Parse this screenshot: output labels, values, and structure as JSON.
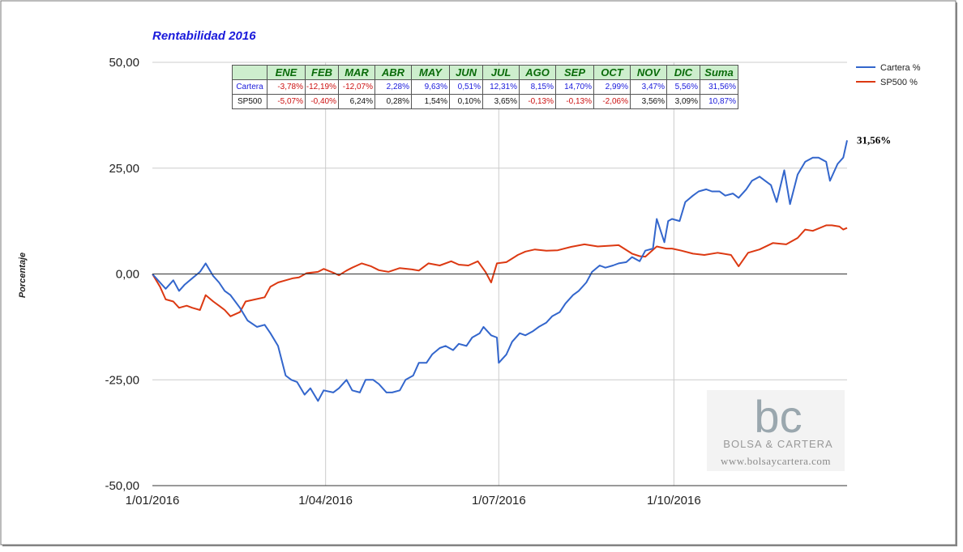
{
  "chart_data": {
    "type": "line",
    "title": "Rentabilidad 2016",
    "ylabel": "Porcentaje",
    "xlabel": "",
    "ylim": [
      -50,
      50
    ],
    "yticks": [
      "50,00",
      "25,00",
      "0,00",
      "-25,00",
      "-50,00"
    ],
    "xticks": [
      "1/01/2016",
      "1/04/2016",
      "1/07/2016",
      "1/10/2016"
    ],
    "grid": true,
    "legend_position": "top-right",
    "end_label": "31,56%",
    "series": [
      {
        "name": "Cartera %",
        "color": "#3366cc",
        "points": [
          [
            "2016-01-01",
            0
          ],
          [
            "2016-01-05",
            -2
          ],
          [
            "2016-01-08",
            -3.5
          ],
          [
            "2016-01-12",
            -1.5
          ],
          [
            "2016-01-15",
            -4
          ],
          [
            "2016-01-18",
            -2.5
          ],
          [
            "2016-01-22",
            -1
          ],
          [
            "2016-01-26",
            0.5
          ],
          [
            "2016-01-29",
            2.5
          ],
          [
            "2016-02-02",
            -0.5
          ],
          [
            "2016-02-05",
            -2
          ],
          [
            "2016-02-08",
            -4
          ],
          [
            "2016-02-11",
            -5
          ],
          [
            "2016-02-16",
            -8
          ],
          [
            "2016-02-20",
            -11
          ],
          [
            "2016-02-25",
            -12.5
          ],
          [
            "2016-02-29",
            -12
          ],
          [
            "2016-03-03",
            -14
          ],
          [
            "2016-03-07",
            -17
          ],
          [
            "2016-03-11",
            -24
          ],
          [
            "2016-03-14",
            -25
          ],
          [
            "2016-03-17",
            -25.5
          ],
          [
            "2016-03-21",
            -28.5
          ],
          [
            "2016-03-24",
            -27
          ],
          [
            "2016-03-28",
            -30
          ],
          [
            "2016-03-31",
            -27.5
          ],
          [
            "2016-04-05",
            -28
          ],
          [
            "2016-04-08",
            -27
          ],
          [
            "2016-04-12",
            -25
          ],
          [
            "2016-04-15",
            -27.5
          ],
          [
            "2016-04-19",
            -28
          ],
          [
            "2016-04-22",
            -25
          ],
          [
            "2016-04-26",
            -25
          ],
          [
            "2016-04-29",
            -26
          ],
          [
            "2016-05-03",
            -28
          ],
          [
            "2016-05-06",
            -28
          ],
          [
            "2016-05-10",
            -27.5
          ],
          [
            "2016-05-13",
            -25
          ],
          [
            "2016-05-17",
            -24
          ],
          [
            "2016-05-20",
            -21
          ],
          [
            "2016-05-24",
            -21
          ],
          [
            "2016-05-27",
            -19
          ],
          [
            "2016-05-31",
            -17.5
          ],
          [
            "2016-06-03",
            -17
          ],
          [
            "2016-06-07",
            -18
          ],
          [
            "2016-06-10",
            -16.5
          ],
          [
            "2016-06-14",
            -17
          ],
          [
            "2016-06-17",
            -15
          ],
          [
            "2016-06-21",
            -14
          ],
          [
            "2016-06-23",
            -12.5
          ],
          [
            "2016-06-27",
            -14.5
          ],
          [
            "2016-06-30",
            -15
          ],
          [
            "2016-07-01",
            -21
          ],
          [
            "2016-07-05",
            -19
          ],
          [
            "2016-07-08",
            -16
          ],
          [
            "2016-07-12",
            -14
          ],
          [
            "2016-07-15",
            -14.5
          ],
          [
            "2016-07-19",
            -13.5
          ],
          [
            "2016-07-22",
            -12.5
          ],
          [
            "2016-07-26",
            -11.5
          ],
          [
            "2016-07-29",
            -10
          ],
          [
            "2016-08-02",
            -9
          ],
          [
            "2016-08-05",
            -7
          ],
          [
            "2016-08-09",
            -5
          ],
          [
            "2016-08-12",
            -4
          ],
          [
            "2016-08-16",
            -2
          ],
          [
            "2016-08-19",
            0.5
          ],
          [
            "2016-08-23",
            2
          ],
          [
            "2016-08-26",
            1.5
          ],
          [
            "2016-08-30",
            2
          ],
          [
            "2016-09-02",
            2.5
          ],
          [
            "2016-09-06",
            2.8
          ],
          [
            "2016-09-09",
            4
          ],
          [
            "2016-09-13",
            3
          ],
          [
            "2016-09-16",
            5.5
          ],
          [
            "2016-09-20",
            6
          ],
          [
            "2016-09-22",
            13
          ],
          [
            "2016-09-26",
            7.5
          ],
          [
            "2016-09-28",
            12.5
          ],
          [
            "2016-09-30",
            13
          ],
          [
            "2016-10-04",
            12.5
          ],
          [
            "2016-10-07",
            17
          ],
          [
            "2016-10-11",
            18.5
          ],
          [
            "2016-10-14",
            19.5
          ],
          [
            "2016-10-18",
            20
          ],
          [
            "2016-10-21",
            19.5
          ],
          [
            "2016-10-25",
            19.5
          ],
          [
            "2016-10-28",
            18.5
          ],
          [
            "2016-11-01",
            19
          ],
          [
            "2016-11-04",
            18
          ],
          [
            "2016-11-08",
            20
          ],
          [
            "2016-11-11",
            22
          ],
          [
            "2016-11-15",
            23
          ],
          [
            "2016-11-18",
            22
          ],
          [
            "2016-11-21",
            21
          ],
          [
            "2016-11-24",
            17
          ],
          [
            "2016-11-28",
            24.5
          ],
          [
            "2016-12-01",
            16.5
          ],
          [
            "2016-12-05",
            23.5
          ],
          [
            "2016-12-09",
            26.5
          ],
          [
            "2016-12-13",
            27.5
          ],
          [
            "2016-12-16",
            27.5
          ],
          [
            "2016-12-20",
            26.5
          ],
          [
            "2016-12-22",
            22
          ],
          [
            "2016-12-26",
            26
          ],
          [
            "2016-12-29",
            27.5
          ],
          [
            "2016-12-31",
            31.56
          ]
        ]
      },
      {
        "name": "SP500 %",
        "color": "#dc3912",
        "points": [
          [
            "2016-01-01",
            0
          ],
          [
            "2016-01-05",
            -3
          ],
          [
            "2016-01-08",
            -6
          ],
          [
            "2016-01-12",
            -6.5
          ],
          [
            "2016-01-15",
            -8
          ],
          [
            "2016-01-19",
            -7.5
          ],
          [
            "2016-01-22",
            -8
          ],
          [
            "2016-01-26",
            -8.5
          ],
          [
            "2016-01-29",
            -5
          ],
          [
            "2016-02-02",
            -6.5
          ],
          [
            "2016-02-05",
            -7.5
          ],
          [
            "2016-02-08",
            -8.5
          ],
          [
            "2016-02-11",
            -10
          ],
          [
            "2016-02-16",
            -9
          ],
          [
            "2016-02-19",
            -6.5
          ],
          [
            "2016-02-24",
            -6
          ],
          [
            "2016-02-29",
            -5.5
          ],
          [
            "2016-03-03",
            -3
          ],
          [
            "2016-03-07",
            -2
          ],
          [
            "2016-03-11",
            -1.5
          ],
          [
            "2016-03-15",
            -1
          ],
          [
            "2016-03-18",
            -0.8
          ],
          [
            "2016-03-22",
            0.2
          ],
          [
            "2016-03-28",
            0.5
          ],
          [
            "2016-03-31",
            1.2
          ],
          [
            "2016-04-05",
            0.3
          ],
          [
            "2016-04-08",
            -0.3
          ],
          [
            "2016-04-12",
            0.8
          ],
          [
            "2016-04-15",
            1.5
          ],
          [
            "2016-04-20",
            2.5
          ],
          [
            "2016-04-25",
            1.8
          ],
          [
            "2016-04-29",
            0.9
          ],
          [
            "2016-05-04",
            0.5
          ],
          [
            "2016-05-10",
            1.4
          ],
          [
            "2016-05-16",
            1.1
          ],
          [
            "2016-05-20",
            0.8
          ],
          [
            "2016-05-25",
            2.5
          ],
          [
            "2016-05-31",
            2.0
          ],
          [
            "2016-06-06",
            3
          ],
          [
            "2016-06-10",
            2.2
          ],
          [
            "2016-06-15",
            2
          ],
          [
            "2016-06-20",
            3
          ],
          [
            "2016-06-24",
            0.5
          ],
          [
            "2016-06-27",
            -2
          ],
          [
            "2016-06-30",
            2.5
          ],
          [
            "2016-07-05",
            2.8
          ],
          [
            "2016-07-11",
            4.5
          ],
          [
            "2016-07-15",
            5.3
          ],
          [
            "2016-07-20",
            5.8
          ],
          [
            "2016-07-26",
            5.5
          ],
          [
            "2016-08-01",
            5.6
          ],
          [
            "2016-08-08",
            6.4
          ],
          [
            "2016-08-15",
            7
          ],
          [
            "2016-08-22",
            6.5
          ],
          [
            "2016-08-29",
            6.7
          ],
          [
            "2016-09-02",
            6.8
          ],
          [
            "2016-09-09",
            4.8
          ],
          [
            "2016-09-13",
            4.2
          ],
          [
            "2016-09-16",
            4.1
          ],
          [
            "2016-09-22",
            6.5
          ],
          [
            "2016-09-27",
            6
          ],
          [
            "2016-09-30",
            6
          ],
          [
            "2016-10-05",
            5.5
          ],
          [
            "2016-10-11",
            4.8
          ],
          [
            "2016-10-17",
            4.5
          ],
          [
            "2016-10-24",
            5
          ],
          [
            "2016-10-31",
            4.5
          ],
          [
            "2016-11-04",
            1.8
          ],
          [
            "2016-11-09",
            5
          ],
          [
            "2016-11-15",
            5.8
          ],
          [
            "2016-11-22",
            7.3
          ],
          [
            "2016-11-29",
            7
          ],
          [
            "2016-12-05",
            8.5
          ],
          [
            "2016-12-09",
            10.5
          ],
          [
            "2016-12-13",
            10.2
          ],
          [
            "2016-12-20",
            11.5
          ],
          [
            "2016-12-23",
            11.5
          ],
          [
            "2016-12-27",
            11.2
          ],
          [
            "2016-12-29",
            10.5
          ],
          [
            "2016-12-31",
            10.87
          ]
        ]
      }
    ],
    "table": {
      "headers": [
        "",
        "ENE",
        "FEB",
        "MAR",
        "ABR",
        "MAY",
        "JUN",
        "JUL",
        "AGO",
        "SEP",
        "OCT",
        "NOV",
        "DIC",
        "Suma"
      ],
      "rows": [
        {
          "label": "Cartera",
          "label_color": "#1a1adb",
          "values": [
            "-3,78%",
            "-12,19%",
            "-12,07%",
            "2,28%",
            "9,63%",
            "0,51%",
            "12,31%",
            "8,15%",
            "14,70%",
            "2,99%",
            "3,47%",
            "5,56%",
            "31,56%"
          ],
          "colors": [
            "#cc1111",
            "#cc1111",
            "#cc1111",
            "#1a1adb",
            "#1a1adb",
            "#1a1adb",
            "#1a1adb",
            "#1a1adb",
            "#1a1adb",
            "#1a1adb",
            "#1a1adb",
            "#1a1adb",
            "#1a1adb"
          ]
        },
        {
          "label": "SP500",
          "label_color": "#111111",
          "values": [
            "-5,07%",
            "-0,40%",
            "6,24%",
            "0,28%",
            "1,54%",
            "0,10%",
            "3,65%",
            "-0,13%",
            "-0,13%",
            "-2,06%",
            "3,56%",
            "3,09%",
            "10,87%"
          ],
          "colors": [
            "#cc1111",
            "#cc1111",
            "#111111",
            "#111111",
            "#111111",
            "#111111",
            "#111111",
            "#cc1111",
            "#cc1111",
            "#cc1111",
            "#111111",
            "#111111",
            "#1a1adb"
          ]
        }
      ]
    }
  },
  "watermark": {
    "logo_text": "bc",
    "name": "BOLSA & CARTERA",
    "url": "www.bolsaycartera.com"
  }
}
